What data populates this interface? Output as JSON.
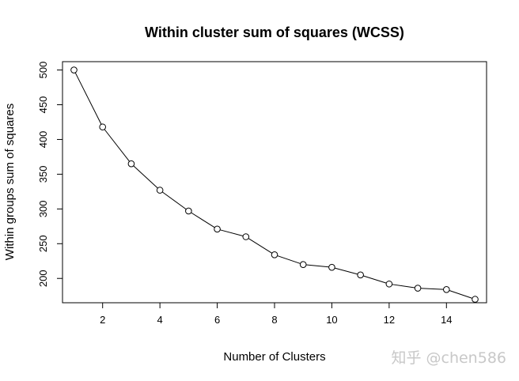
{
  "watermark": "知乎 @chen586",
  "chart_data": {
    "type": "line",
    "title": "Within cluster sum of squares (WCSS)",
    "xlabel": "Number of Clusters",
    "ylabel": "Within groups sum of squares",
    "x": [
      1,
      2,
      3,
      4,
      5,
      6,
      7,
      8,
      9,
      10,
      11,
      12,
      13,
      14,
      15
    ],
    "y": [
      500,
      418,
      365,
      327,
      297,
      271,
      260,
      234,
      220,
      216,
      205,
      192,
      186,
      184,
      170
    ],
    "xlim": [
      0.6,
      15.4
    ],
    "ylim": [
      165,
      512
    ],
    "xticks": [
      2,
      4,
      6,
      8,
      10,
      12,
      14
    ],
    "yticks": [
      200,
      250,
      300,
      350,
      400,
      450,
      500
    ],
    "marker": "open-circle",
    "line_color": "#000000",
    "grid": false,
    "legend": false
  }
}
